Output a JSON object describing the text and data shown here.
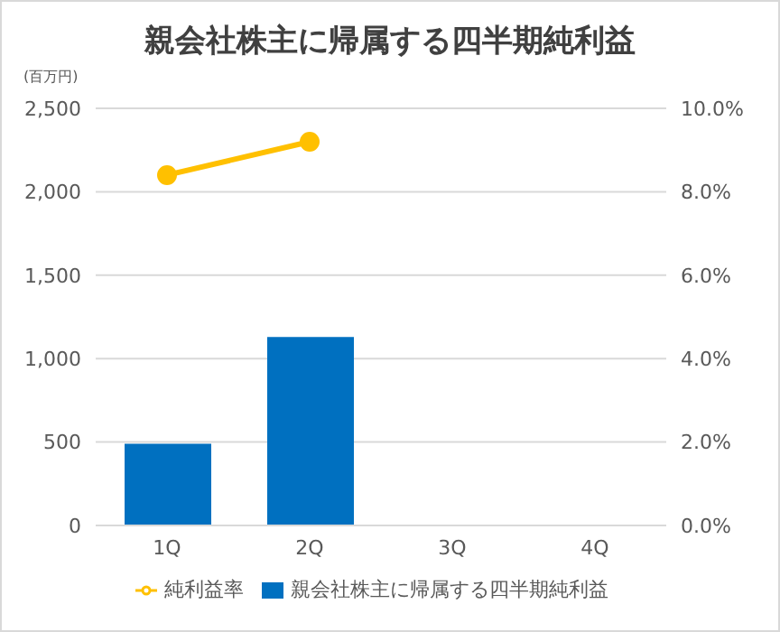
{
  "chart_data": {
    "type": "bar",
    "title": "親会社株主に帰属する四半期純利益",
    "ylabel": "(百万円)",
    "categories": [
      "1Q",
      "2Q",
      "3Q",
      "4Q"
    ],
    "series": [
      {
        "name": "親会社株主に帰属する四半期純利益",
        "color": "#0070c0",
        "values": [
          490,
          1130,
          null,
          null
        ]
      },
      {
        "name": "純利益率",
        "type": "line",
        "axis": "y2",
        "color": "#ffc000",
        "values": [
          8.4,
          9.2,
          null,
          null
        ]
      }
    ],
    "ylim": [
      0,
      2500
    ],
    "yticks": [
      {
        "value": 0,
        "label": "0"
      },
      {
        "value": 500,
        "label": "500"
      },
      {
        "value": 1000,
        "label": "1,000"
      },
      {
        "value": 1500,
        "label": "1,500"
      },
      {
        "value": 2000,
        "label": "2,000"
      },
      {
        "value": 2500,
        "label": "2,500"
      }
    ],
    "y2lim": [
      0,
      10
    ],
    "y2ticks": [
      {
        "value": 0,
        "label": "0.0%"
      },
      {
        "value": 2,
        "label": "2.0%"
      },
      {
        "value": 4,
        "label": "4.0%"
      },
      {
        "value": 6,
        "label": "6.0%"
      },
      {
        "value": 8,
        "label": "8.0%"
      },
      {
        "value": 10,
        "label": "10.0%"
      }
    ],
    "grid": "y",
    "legend": "bottom",
    "marker": "circle",
    "line_style": "solid"
  }
}
